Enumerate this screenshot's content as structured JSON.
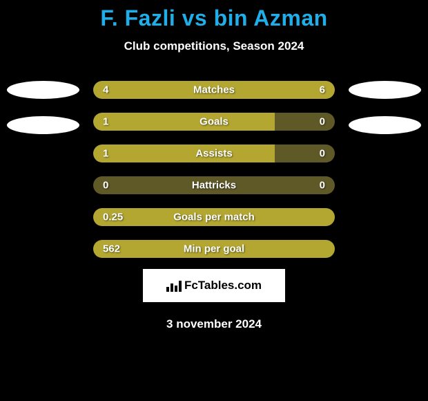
{
  "title": "F. Fazli vs bin Azman",
  "subtitle": "Club competitions, Season 2024",
  "date": "3 november 2024",
  "brand": "FcTables.com",
  "palette": {
    "background": "#000000",
    "title_color": "#1faee8",
    "text_color": "#ffffff",
    "bar_fill": "#b3a731",
    "bar_bg": "#5f5928",
    "brand_bg": "#ffffff"
  },
  "typography": {
    "title_fontsize": 32,
    "subtitle_fontsize": 17,
    "bar_label_fontsize": 15,
    "font_weight": 800
  },
  "bars": [
    {
      "label": "Matches",
      "left": "4",
      "right": "6",
      "left_pct": 40,
      "right_pct": 60
    },
    {
      "label": "Goals",
      "left": "1",
      "right": "0",
      "left_pct": 100,
      "right_pct": 0,
      "left_fill_pct": 75
    },
    {
      "label": "Assists",
      "left": "1",
      "right": "0",
      "left_pct": 100,
      "right_pct": 0,
      "left_fill_pct": 75
    },
    {
      "label": "Hattricks",
      "left": "0",
      "right": "0",
      "left_pct": 50,
      "right_pct": 50,
      "all_bg": true
    },
    {
      "label": "Goals per match",
      "left": "0.25",
      "right": "",
      "left_pct": 100,
      "right_pct": 0,
      "full_fill": true
    },
    {
      "label": "Min per goal",
      "left": "562",
      "right": "",
      "left_pct": 100,
      "right_pct": 0,
      "full_fill": true
    }
  ],
  "avatars": {
    "left_count": 2,
    "right_count": 2
  }
}
